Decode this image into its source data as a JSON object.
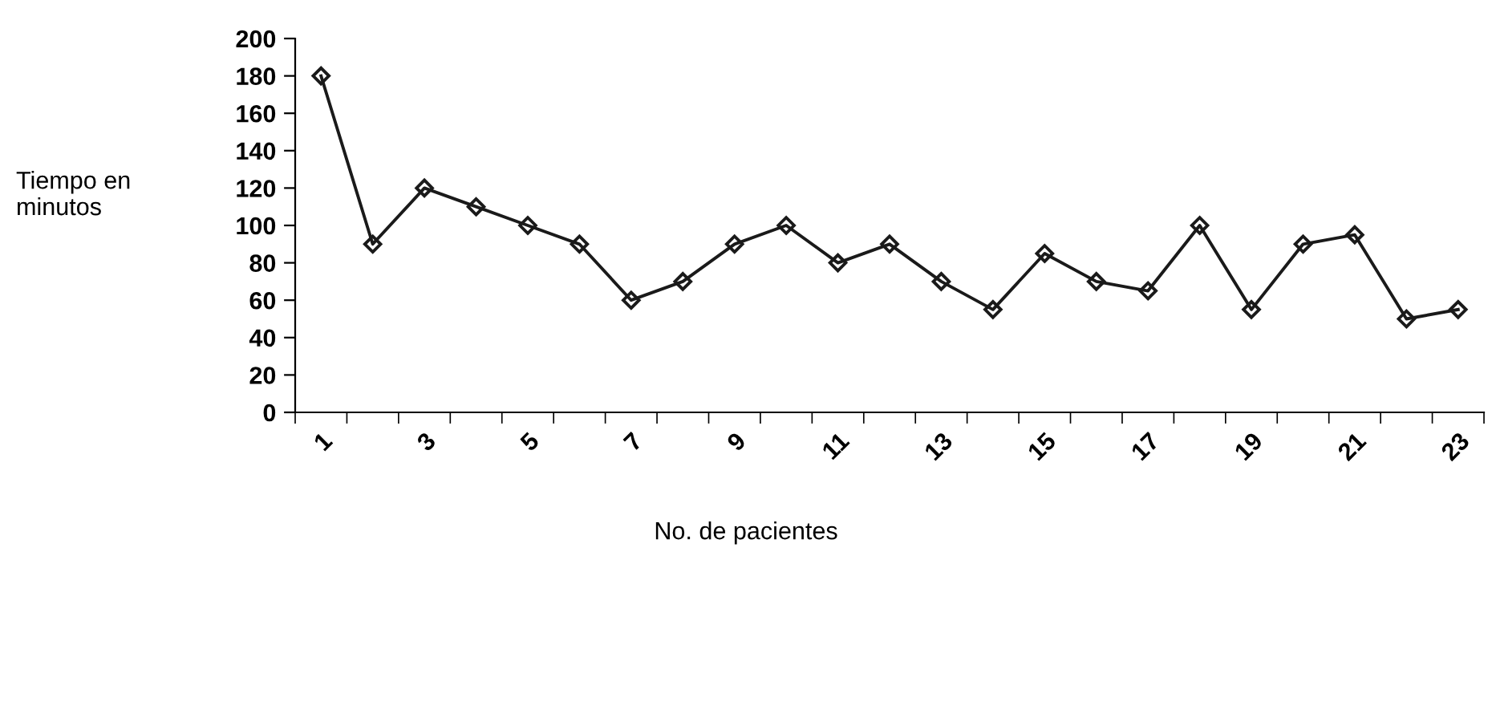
{
  "chart_data": {
    "type": "line",
    "ylabel": "Tiempo en\nminutos",
    "xlabel": "No. de pacientes",
    "categories": [
      "1",
      null,
      "3",
      null,
      "5",
      null,
      "7",
      null,
      "9",
      null,
      "11",
      null,
      "13",
      null,
      "15",
      null,
      "17",
      null,
      "19",
      null,
      "21",
      null,
      "23"
    ],
    "series": [
      {
        "color": "#1a1a1a",
        "values": [
          180,
          90,
          120,
          110,
          100,
          90,
          60,
          70,
          90,
          100,
          80,
          90,
          70,
          55,
          85,
          70,
          65,
          100,
          55,
          90,
          95,
          50,
          55
        ]
      }
    ],
    "ylim": [
      0,
      200
    ],
    "yticks": [
      0,
      20,
      40,
      60,
      80,
      100,
      120,
      140,
      160,
      180,
      200
    ],
    "marker": "diamond",
    "line_style": "solid",
    "grid": false,
    "legend": false
  }
}
